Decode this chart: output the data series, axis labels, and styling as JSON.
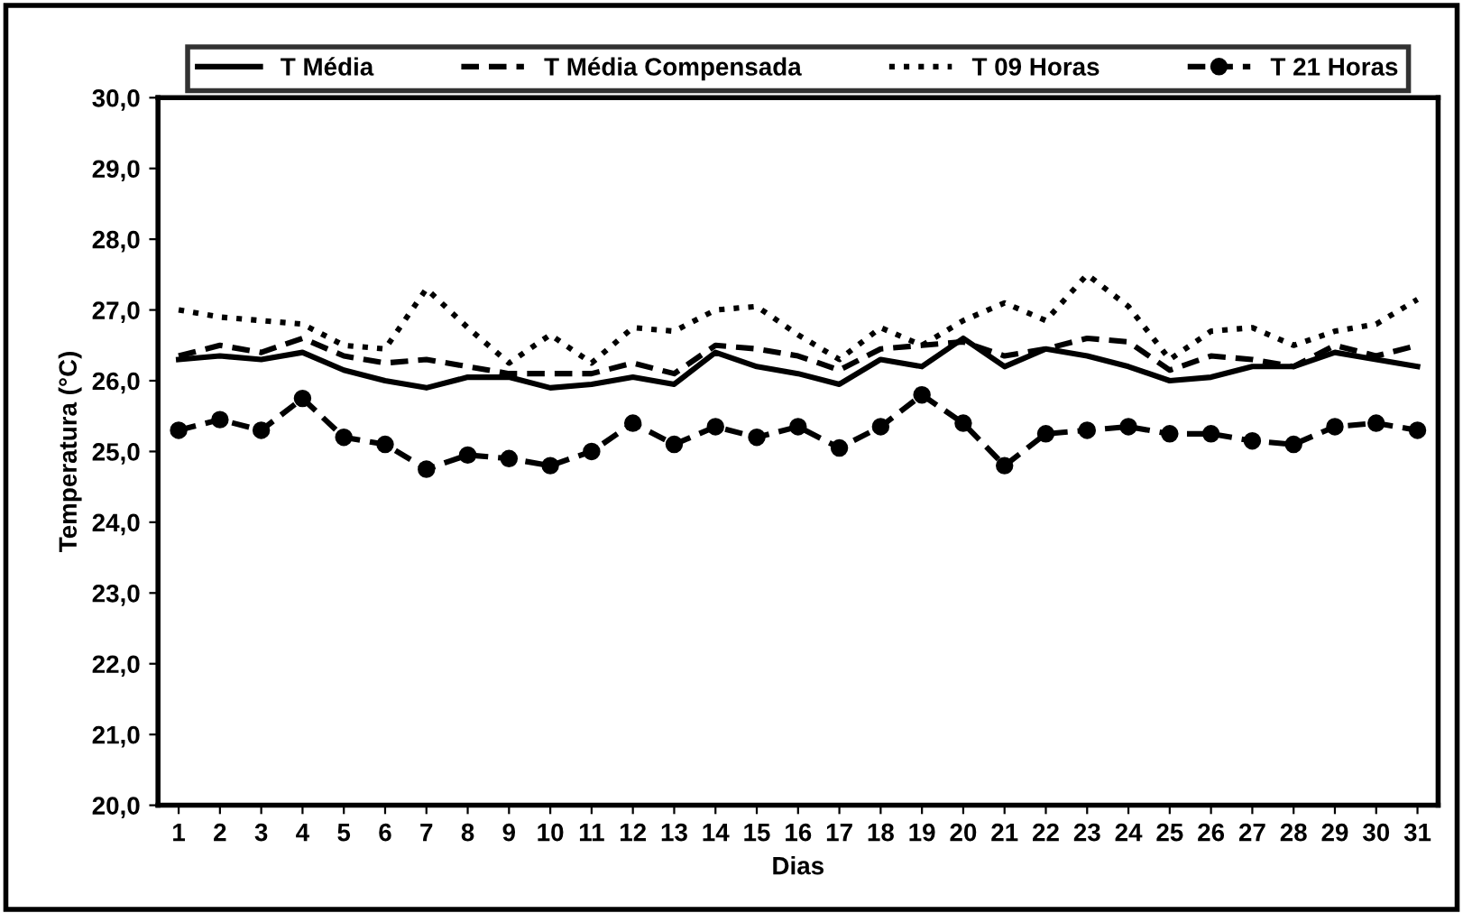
{
  "chart_data": {
    "type": "line",
    "xlabel": "Dias",
    "ylabel": "Temperatura (°C)",
    "categories": [
      "1",
      "2",
      "3",
      "4",
      "5",
      "6",
      "7",
      "8",
      "9",
      "10",
      "11",
      "12",
      "13",
      "14",
      "15",
      "16",
      "17",
      "18",
      "19",
      "20",
      "21",
      "22",
      "23",
      "24",
      "25",
      "26",
      "27",
      "28",
      "29",
      "30",
      "31"
    ],
    "ylim": [
      20,
      30
    ],
    "yticks": [
      {
        "value": 20,
        "label": "20,0"
      },
      {
        "value": 21,
        "label": "21,0"
      },
      {
        "value": 22,
        "label": "22,0"
      },
      {
        "value": 23,
        "label": "23,0"
      },
      {
        "value": 24,
        "label": "24,0"
      },
      {
        "value": 25,
        "label": "25,0"
      },
      {
        "value": 26,
        "label": "26,0"
      },
      {
        "value": 27,
        "label": "27,0"
      },
      {
        "value": 28,
        "label": "28,0"
      },
      {
        "value": 29,
        "label": "29,0"
      },
      {
        "value": 30,
        "label": "30,0"
      }
    ],
    "grid": false,
    "legend": "top",
    "series": [
      {
        "name": "T Média",
        "color": "#000000",
        "line_style": "solid",
        "marker": "none",
        "values": [
          26.3,
          26.35,
          26.3,
          26.4,
          26.15,
          26.0,
          25.9,
          26.05,
          26.05,
          25.9,
          25.95,
          26.05,
          25.95,
          26.4,
          26.2,
          26.1,
          25.95,
          26.3,
          26.2,
          26.6,
          26.2,
          26.45,
          26.35,
          26.2,
          26.0,
          26.05,
          26.2,
          26.2,
          26.4,
          26.3,
          26.2
        ]
      },
      {
        "name": "T Média Compensada",
        "color": "#000000",
        "line_style": "dashed",
        "marker": "none",
        "values": [
          26.35,
          26.5,
          26.4,
          26.6,
          26.35,
          26.25,
          26.3,
          26.2,
          26.1,
          26.1,
          26.1,
          26.25,
          26.1,
          26.5,
          26.45,
          26.35,
          26.15,
          26.45,
          26.5,
          26.55,
          26.35,
          26.45,
          26.6,
          26.55,
          26.15,
          26.35,
          26.3,
          26.2,
          26.5,
          26.35,
          26.5
        ]
      },
      {
        "name": "T 09 Horas",
        "color": "#000000",
        "line_style": "dotted",
        "marker": "none",
        "values": [
          27.0,
          26.9,
          26.85,
          26.8,
          26.5,
          26.45,
          27.3,
          26.75,
          26.25,
          26.65,
          26.25,
          26.75,
          26.7,
          27.0,
          27.05,
          26.65,
          26.3,
          26.75,
          26.5,
          26.85,
          27.1,
          26.85,
          27.5,
          27.05,
          26.3,
          26.7,
          26.75,
          26.5,
          26.7,
          26.8,
          27.15
        ]
      },
      {
        "name": "T 21 Horas",
        "color": "#000000",
        "line_style": "dashed",
        "marker": "circle",
        "values": [
          25.3,
          25.45,
          25.3,
          25.75,
          25.2,
          25.1,
          24.75,
          24.95,
          24.9,
          24.8,
          25.0,
          25.4,
          25.1,
          25.35,
          25.2,
          25.35,
          25.05,
          25.35,
          25.8,
          25.4,
          24.8,
          25.25,
          25.3,
          25.35,
          25.25,
          25.25,
          25.15,
          25.1,
          25.35,
          25.4,
          25.3
        ]
      }
    ]
  }
}
